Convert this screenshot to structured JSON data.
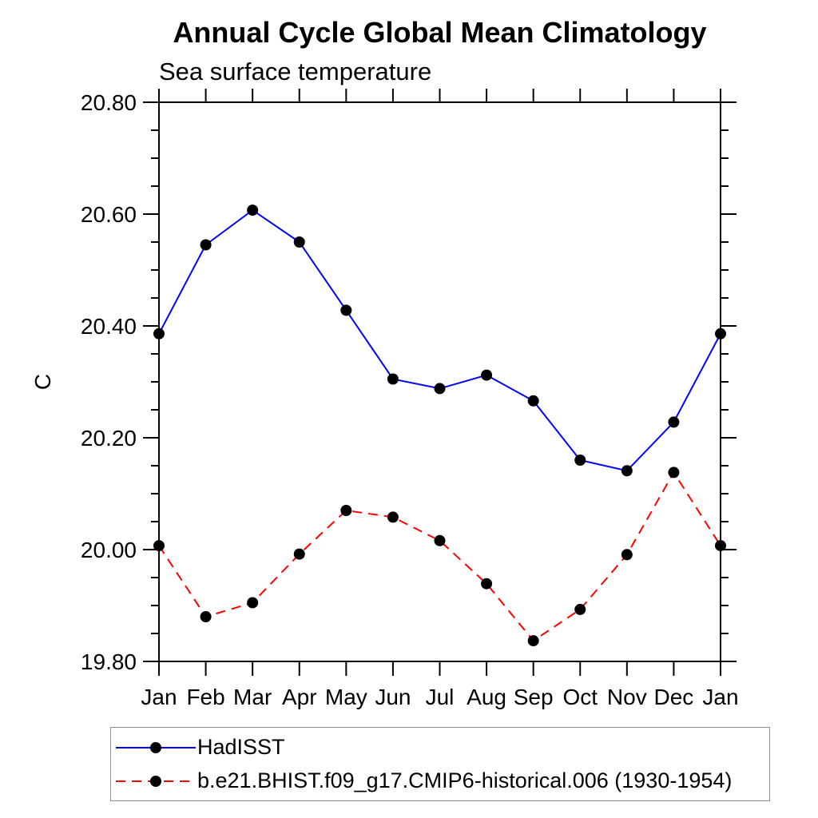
{
  "title": "Annual Cycle Global Mean Climatology",
  "subtitle": "Sea surface temperature",
  "chart_data": {
    "type": "line",
    "title": "Annual Cycle Global Mean Climatology",
    "subtitle": "Sea surface temperature",
    "xlabel": "",
    "ylabel": "C",
    "categories": [
      "Jan",
      "Feb",
      "Mar",
      "Apr",
      "May",
      "Jun",
      "Jul",
      "Aug",
      "Sep",
      "Oct",
      "Nov",
      "Dec",
      "Jan"
    ],
    "ylim": [
      19.8,
      20.8
    ],
    "ytick_interval": 0.2,
    "yminor_interval": 0.05,
    "ytick_labels": [
      "19.80",
      "20.00",
      "20.20",
      "20.40",
      "20.60",
      "20.80"
    ],
    "grid": false,
    "legend_position": "bottom-left-box",
    "frame_color": "#000000",
    "marker": "filled-circle",
    "series": [
      {
        "name": "HadISST",
        "color": "#0000ff",
        "style": "solid",
        "marker_color": "#000000",
        "values": [
          20.386,
          20.545,
          20.607,
          20.55,
          20.428,
          20.305,
          20.288,
          20.312,
          20.266,
          20.16,
          20.141,
          20.228,
          20.386
        ]
      },
      {
        "name": "b.e21.BHIST.f09_g17.CMIP6-historical.006 (1930-1954)",
        "color": "#ff0000",
        "style": "dashed",
        "marker_color": "#000000",
        "values": [
          20.007,
          19.88,
          19.905,
          19.992,
          20.07,
          20.058,
          20.016,
          19.939,
          19.837,
          19.893,
          19.991,
          20.138,
          20.007
        ]
      }
    ]
  }
}
